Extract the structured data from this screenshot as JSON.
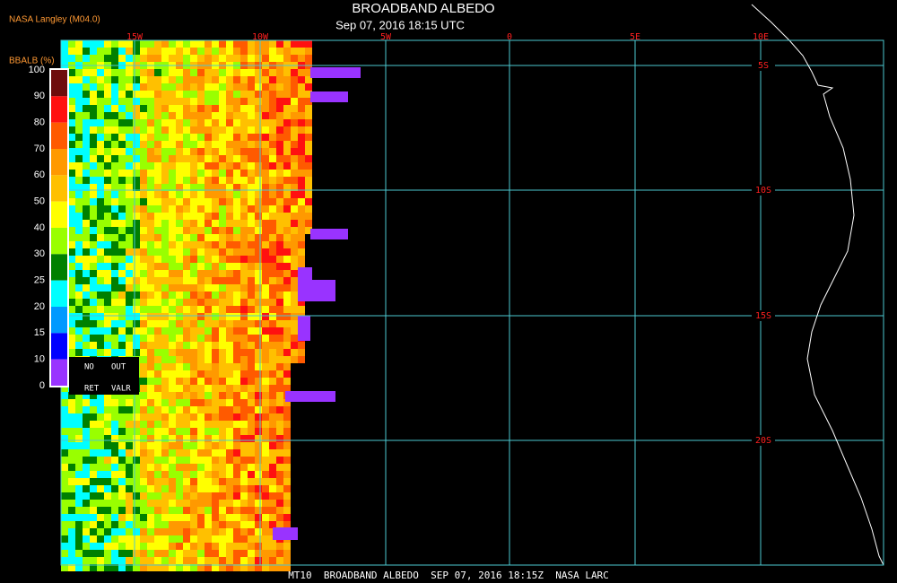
{
  "header": {
    "title": "BROADBAND ALBEDO",
    "subtitle": "Sep 07, 2016 18:15 UTC",
    "source": "NASA Langley (M04.0)"
  },
  "legend": {
    "title": "BBALB (%)",
    "ticks": [
      "100",
      "90",
      "80",
      "70",
      "60",
      "50",
      "40",
      "30",
      "25",
      "20",
      "15",
      "10",
      "0"
    ],
    "colors": [
      "#6e0d0d",
      "#ff1010",
      "#ff5a00",
      "#ff9900",
      "#ffc000",
      "#ffff00",
      "#99ff00",
      "#008000",
      "#00ffff",
      "#0099ff",
      "#0000ff",
      "#9933ff"
    ],
    "no_data": [
      "NO",
      "OUT",
      "RET",
      "VALR"
    ]
  },
  "map": {
    "longitudes": [
      "15W",
      "10W",
      "5W",
      "0",
      "5E",
      "10E"
    ],
    "latitudes": [
      "5S",
      "10S",
      "15S",
      "20S"
    ]
  },
  "footer": "MT10  BROADBAND ALBEDO  SEP 07, 2016 18:15Z  NASA LARC"
}
